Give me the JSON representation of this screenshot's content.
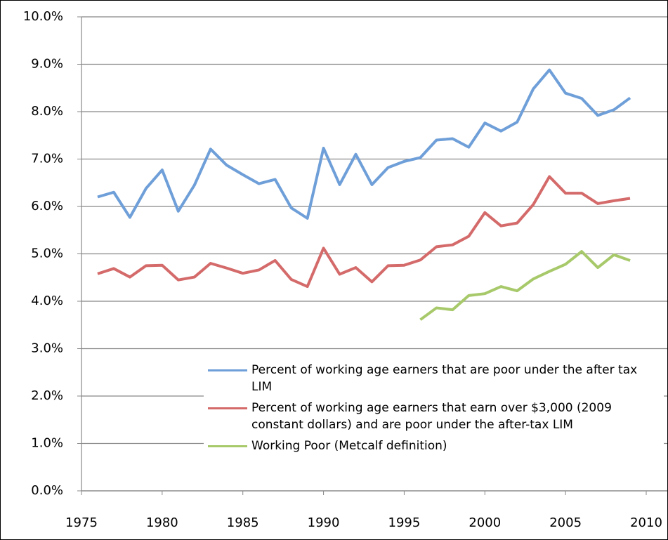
{
  "chart_data": {
    "type": "line",
    "x": [
      1976,
      1977,
      1978,
      1979,
      1980,
      1981,
      1982,
      1983,
      1984,
      1985,
      1986,
      1987,
      1988,
      1989,
      1990,
      1991,
      1992,
      1993,
      1994,
      1995,
      1996,
      1997,
      1998,
      1999,
      2000,
      2001,
      2002,
      2003,
      2004,
      2005,
      2006,
      2007,
      2008,
      2009
    ],
    "series": [
      {
        "name": "Percent of working age earners that are poor under the after tax LIM",
        "color": "#6f9fd8",
        "values": [
          6.2,
          6.3,
          5.77,
          6.38,
          6.77,
          5.9,
          6.45,
          7.21,
          6.87,
          6.67,
          6.48,
          6.57,
          5.97,
          5.75,
          7.23,
          6.46,
          7.1,
          6.46,
          6.82,
          6.95,
          7.03,
          7.4,
          7.43,
          7.25,
          7.76,
          7.59,
          7.78,
          8.48,
          8.88,
          8.39,
          8.28,
          7.92,
          8.04,
          8.29
        ]
      },
      {
        "name": "Percent of working age earners that earn over $3,000 (2009 constant dollars) and are poor under the after-tax LIM",
        "color": "#d46a6a",
        "values": [
          4.58,
          4.69,
          4.51,
          4.75,
          4.76,
          4.45,
          4.51,
          4.8,
          4.7,
          4.59,
          4.66,
          4.86,
          4.46,
          4.31,
          5.12,
          4.57,
          4.71,
          4.41,
          4.75,
          4.76,
          4.87,
          5.15,
          5.19,
          5.37,
          5.87,
          5.59,
          5.65,
          6.04,
          6.63,
          6.28,
          6.28,
          6.06,
          6.12,
          6.17
        ]
      },
      {
        "name": "Working Poor (Metcalf definition)",
        "color": "#a7c96a",
        "values": [
          null,
          null,
          null,
          null,
          null,
          null,
          null,
          null,
          null,
          null,
          null,
          null,
          null,
          null,
          null,
          null,
          null,
          null,
          null,
          null,
          3.61,
          3.86,
          3.82,
          4.12,
          4.16,
          4.31,
          4.22,
          4.47,
          4.63,
          4.78,
          5.05,
          4.71,
          4.98,
          4.86
        ]
      }
    ],
    "xlim": [
      1975,
      2010
    ],
    "xticks": [
      1975,
      1980,
      1985,
      1990,
      1995,
      2000,
      2005,
      2010
    ],
    "ylim": [
      0,
      10
    ],
    "yticks": [
      {
        "value": 0,
        "label": "0.0%"
      },
      {
        "value": 1,
        "label": "1.0%"
      },
      {
        "value": 2,
        "label": "2.0%"
      },
      {
        "value": 3,
        "label": "3.0%"
      },
      {
        "value": 4,
        "label": "4.0%"
      },
      {
        "value": 5,
        "label": "5.0%"
      },
      {
        "value": 6,
        "label": "6.0%"
      },
      {
        "value": 7,
        "label": "7.0%"
      },
      {
        "value": 8,
        "label": "8.0%"
      },
      {
        "value": 9,
        "label": "9.0%"
      },
      {
        "value": 10,
        "label": "10.0%"
      }
    ],
    "grid": true
  }
}
